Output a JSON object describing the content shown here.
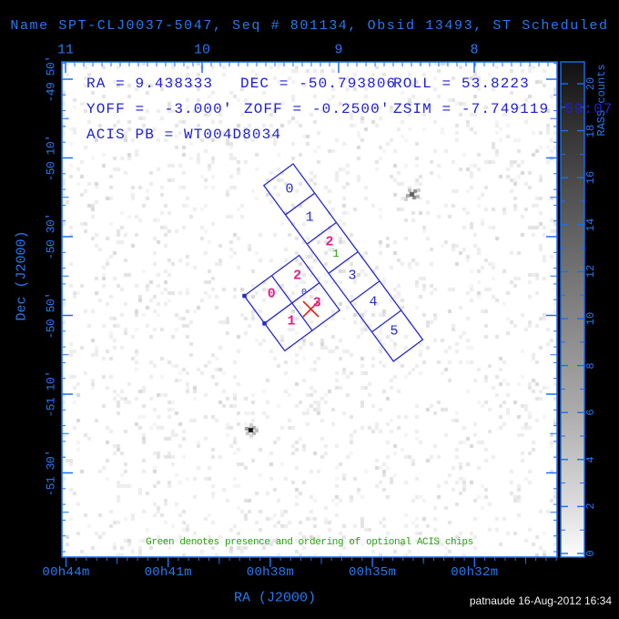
{
  "window": {
    "title": "Name SPT-CLJ0037-5047, Seq # 801134, Obsid 13493, ST Scheduled"
  },
  "info_text": {
    "ra": "RA = 9.438333",
    "dec": "DEC = -50.793806",
    "roll": "ROLL = 53.8223",
    "yoff": "YOFF =  -3.000'",
    "zoff": "ZOFF = -0.2500'",
    "zsim": "ZSIM = -7.749119",
    "zsim_overflow": "59:07",
    "acis_pb": "ACIS PB = WT004D8034"
  },
  "axes": {
    "top_tick_labels": [
      "11",
      "10",
      "9",
      "8"
    ],
    "bottom_tick_labels": [
      "00h44m",
      "00h41m",
      "00h38m",
      "00h35m",
      "00h32m"
    ],
    "left_tick_labels": [
      "-49 50'",
      "-50 10'",
      "-50 30'",
      "-50 50'",
      "-51 10'",
      "-51 30'"
    ],
    "x_axis_label": "RA (J2000)",
    "y_axis_label": "Dec (J2000)"
  },
  "colorbar": {
    "title": "RASS counts",
    "tick_labels": [
      "0",
      "2",
      "4",
      "6",
      "8",
      "10",
      "12",
      "14",
      "16",
      "18",
      "20"
    ]
  },
  "fov": {
    "s_array_chip_labels": [
      {
        "text": "0",
        "color": "blue"
      },
      {
        "text": "1",
        "color": "blue"
      },
      {
        "text": "2",
        "color": "magenta"
      },
      {
        "text": "3",
        "color": "blue"
      },
      {
        "text": "4",
        "color": "blue"
      },
      {
        "text": "5",
        "color": "blue"
      }
    ],
    "s_array_optional_order": {
      "text": "1",
      "color": "green"
    },
    "i_array_chip_labels": [
      {
        "text": "2",
        "color": "magenta"
      },
      {
        "text": "0",
        "color": "magenta"
      },
      {
        "text": "1",
        "color": "magenta"
      },
      {
        "text": "3",
        "color": "magenta"
      }
    ],
    "aimpoint_label": "0"
  },
  "caption": "Green denotes presence and ordering of optional ACIS chips",
  "status_bar": {
    "text": "patnaude 16-Aug-2012 16:34"
  },
  "colors": {
    "background": "#000000",
    "plot_bg": "#ffffff",
    "frame_blue": "#1a6ef0",
    "label_blue": "#2a78f0",
    "text_blue": "#2020d0",
    "chip_blue": "#2828cc",
    "magenta": "#e01f8a",
    "green": "#2aa10c",
    "red": "#e82020",
    "white": "#f2f2f2"
  }
}
